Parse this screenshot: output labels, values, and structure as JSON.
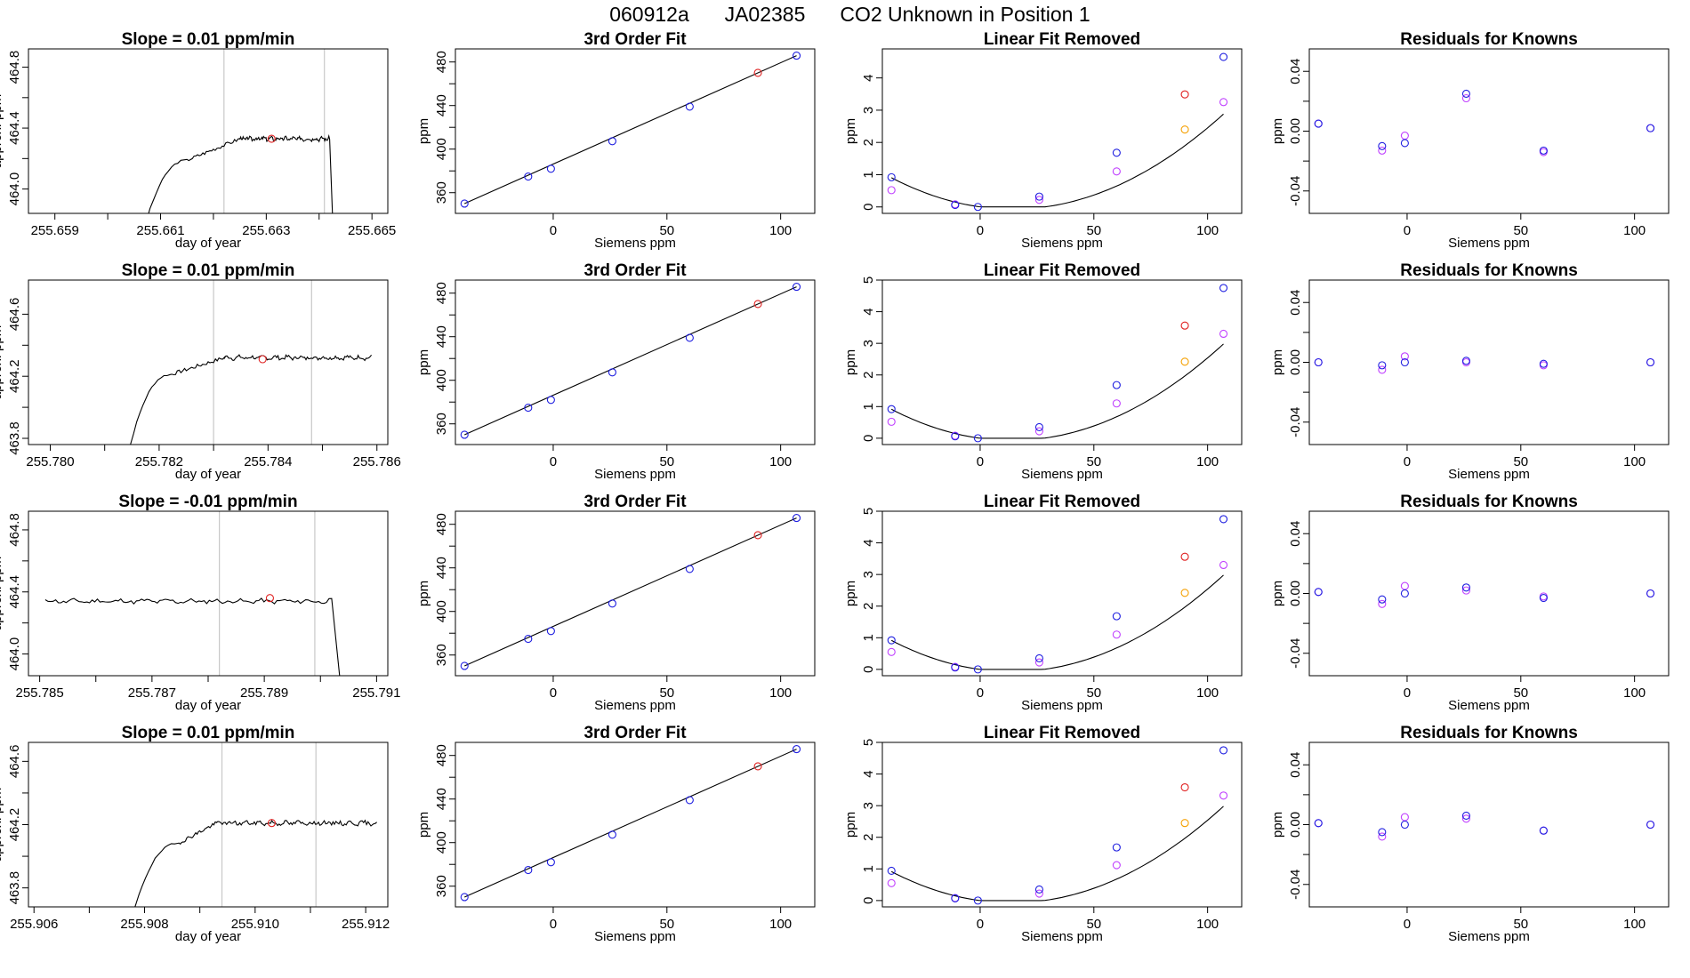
{
  "title": {
    "run": "060912a",
    "tank": "JA02385",
    "description": "CO2 Unknown in Position  1"
  },
  "colors": {
    "blue": "#1f1fe0",
    "red": "#e02020",
    "orange": "#f5a000",
    "magenta": "#c040ff",
    "line": "#000000",
    "vline": "#c8c8c8"
  },
  "chart_data": [
    {
      "type": "line",
      "title": "Slope =  0.01  ppm/min",
      "xlabel": "day of year",
      "ylabel": "approx. ppm",
      "xlim": [
        255.6585,
        255.6653
      ],
      "ylim": [
        463.84,
        464.92
      ],
      "xticks": [
        255.659,
        255.661,
        255.663,
        255.665
      ],
      "xtick_labels": [
        "255.659",
        "255.661",
        "255.663",
        "255.665"
      ],
      "xtick_minor": [
        255.66,
        255.662,
        255.664
      ],
      "yticks": [
        464.0,
        464.4,
        464.8
      ],
      "ytick_labels": [
        "464.0",
        "464.4",
        "464.8"
      ],
      "ytick_minor": [
        464.2,
        464.6
      ],
      "vlines": [
        255.6622,
        255.6641
      ],
      "trace": {
        "start": 255.66045,
        "rise_end": 255.6615,
        "plateau_start": 255.6625,
        "end": 255.6642,
        "drop": 255.6643,
        "base": 463.4,
        "low_mid": 464.19,
        "plateau": 464.33,
        "noise": 0.012,
        "seed": 3
      },
      "marker": {
        "x": 255.6631,
        "y": 464.33
      }
    },
    {
      "type": "scatter",
      "title": "3rd Order Fit",
      "xlabel": "Siemens ppm",
      "ylabel": "ppm",
      "xlim": [
        -43,
        115
      ],
      "ylim": [
        341,
        492
      ],
      "xticks": [
        0,
        50,
        100
      ],
      "xtick_labels": [
        "0",
        "50",
        "100"
      ],
      "yticks": [
        360,
        400,
        440,
        480
      ],
      "ytick_labels": [
        "360",
        "400",
        "440",
        "480"
      ],
      "ytick_minor": [
        380,
        420,
        460
      ],
      "fit_line": {
        "x": [
          -39,
          107
        ],
        "y": [
          350.0,
          485.8
        ]
      },
      "points_blue": {
        "x": [
          -39,
          -11,
          -1,
          26,
          60,
          107
        ],
        "y": [
          350.0,
          374.8,
          382.0,
          407.3,
          439.0,
          485.8
        ]
      },
      "points_red": {
        "x": [
          90
        ],
        "y": [
          470.0
        ]
      }
    },
    {
      "type": "scatter",
      "title": "Linear Fit Removed",
      "xlabel": "Siemens ppm",
      "ylabel": "ppm",
      "xlim": [
        -43,
        115
      ],
      "ylim": [
        -0.2,
        4.9
      ],
      "xticks": [
        0,
        50,
        100
      ],
      "xtick_labels": [
        "0",
        "50",
        "100"
      ],
      "yticks": [
        0,
        1,
        2,
        3,
        4
      ],
      "ytick_labels": [
        "0",
        "1",
        "2",
        "3",
        "4"
      ],
      "curve": {
        "a": 0.000343,
        "b": -0.0098,
        "c": -0.069
      },
      "points_blue": {
        "x": [
          -39,
          -11,
          -1,
          26,
          60,
          107
        ],
        "y": [
          0.92,
          0.06,
          0.0,
          0.32,
          1.68,
          4.65
        ]
      },
      "points_red": {
        "x": [
          90
        ],
        "y": [
          3.49
        ]
      },
      "points_orange": {
        "x": [
          90
        ],
        "y": [
          2.4
        ]
      },
      "points_magenta": {
        "x": [
          -39,
          -11,
          26,
          60,
          107
        ],
        "y": [
          0.52,
          0.08,
          0.22,
          1.1,
          3.25
        ]
      }
    },
    {
      "type": "scatter",
      "title": "Residuals for Knowns",
      "xlabel": "Siemens ppm",
      "ylabel": "ppm",
      "xlim": [
        -43,
        115
      ],
      "ylim": [
        -0.055,
        0.055
      ],
      "xticks": [
        0,
        50,
        100
      ],
      "xtick_labels": [
        "0",
        "50",
        "100"
      ],
      "yticks": [
        -0.04,
        0.0,
        0.04
      ],
      "ytick_labels": [
        "-0.04",
        "0.00",
        "0.04"
      ],
      "ytick_minor": [
        -0.02,
        0.02
      ],
      "points_blue": {
        "x": [
          -39,
          -11,
          -1,
          26,
          60,
          107
        ],
        "y": [
          0.005,
          -0.01,
          -0.008,
          0.025,
          -0.013,
          0.002
        ]
      },
      "points_magenta": {
        "x": [
          -39,
          -11,
          -1,
          26,
          60,
          107
        ],
        "y": [
          0.005,
          -0.013,
          -0.003,
          0.022,
          -0.014,
          0.002
        ]
      }
    },
    {
      "type": "line",
      "title": "Slope =  0.01  ppm/min",
      "xlabel": "day of year",
      "ylabel": "approx. ppm",
      "xlim": [
        255.7796,
        255.7862
      ],
      "ylim": [
        463.76,
        464.82
      ],
      "xticks": [
        255.78,
        255.782,
        255.784,
        255.786
      ],
      "xtick_labels": [
        "255.780",
        "255.782",
        "255.784",
        "255.786"
      ],
      "xtick_minor": [
        255.781,
        255.783,
        255.785
      ],
      "yticks": [
        463.8,
        464.2,
        464.6
      ],
      "ytick_labels": [
        "463.8",
        "464.2",
        "464.6"
      ],
      "ytick_minor": [
        464.0,
        464.4
      ],
      "vlines": [
        255.783,
        255.7848
      ],
      "trace": {
        "start": 255.7812,
        "rise_end": 255.7822,
        "plateau_start": 255.7832,
        "end": 255.7859,
        "drop": null,
        "base": 463.3,
        "low_mid": 464.21,
        "plateau": 464.32,
        "noise": 0.012,
        "seed": 7
      },
      "marker": {
        "x": 255.7839,
        "y": 464.31
      }
    },
    {
      "type": "scatter",
      "title": "3rd Order Fit",
      "xlabel": "Siemens ppm",
      "ylabel": "ppm",
      "xlim": [
        -43,
        115
      ],
      "ylim": [
        341,
        492
      ],
      "xticks": [
        0,
        50,
        100
      ],
      "xtick_labels": [
        "0",
        "50",
        "100"
      ],
      "yticks": [
        360,
        400,
        440,
        480
      ],
      "ytick_labels": [
        "360",
        "400",
        "440",
        "480"
      ],
      "ytick_minor": [
        380,
        420,
        460
      ],
      "fit_line": {
        "x": [
          -39,
          107
        ],
        "y": [
          350.0,
          485.8
        ]
      },
      "points_blue": {
        "x": [
          -39,
          -11,
          -1,
          26,
          60,
          107
        ],
        "y": [
          350.0,
          374.8,
          382.0,
          407.3,
          439.0,
          485.8
        ]
      },
      "points_red": {
        "x": [
          90
        ],
        "y": [
          470.0
        ]
      }
    },
    {
      "type": "scatter",
      "title": "Linear Fit Removed",
      "xlabel": "Siemens ppm",
      "ylabel": "ppm",
      "xlim": [
        -43,
        115
      ],
      "ylim": [
        -0.2,
        5.0
      ],
      "xticks": [
        0,
        50,
        100
      ],
      "xtick_labels": [
        "0",
        "50",
        "100"
      ],
      "yticks": [
        0,
        1,
        2,
        3,
        4,
        5
      ],
      "ytick_labels": [
        "0",
        "1",
        "2",
        "3",
        "4",
        "5"
      ],
      "curve": {
        "a": 0.000352,
        "b": -0.0098,
        "c": -0.072
      },
      "points_blue": {
        "x": [
          -39,
          -11,
          -1,
          26,
          60,
          107
        ],
        "y": [
          0.92,
          0.06,
          0.0,
          0.35,
          1.68,
          4.75
        ]
      },
      "points_red": {
        "x": [
          90
        ],
        "y": [
          3.56
        ]
      },
      "points_orange": {
        "x": [
          90
        ],
        "y": [
          2.42
        ]
      },
      "points_magenta": {
        "x": [
          -39,
          -11,
          26,
          60,
          107
        ],
        "y": [
          0.52,
          0.08,
          0.22,
          1.1,
          3.3
        ]
      }
    },
    {
      "type": "scatter",
      "title": "Residuals for Knowns",
      "xlabel": "Siemens ppm",
      "ylabel": "ppm",
      "xlim": [
        -43,
        115
      ],
      "ylim": [
        -0.055,
        0.055
      ],
      "xticks": [
        0,
        50,
        100
      ],
      "xtick_labels": [
        "0",
        "50",
        "100"
      ],
      "yticks": [
        -0.04,
        0.0,
        0.04
      ],
      "ytick_labels": [
        "-0.04",
        "0.00",
        "0.04"
      ],
      "ytick_minor": [
        -0.02,
        0.02
      ],
      "points_blue": {
        "x": [
          -39,
          -11,
          -1,
          26,
          60,
          107
        ],
        "y": [
          0.0,
          -0.002,
          0.0,
          0.001,
          -0.001,
          0.0
        ]
      },
      "points_magenta": {
        "x": [
          -39,
          -11,
          -1,
          26,
          60,
          107
        ],
        "y": [
          0.0,
          -0.005,
          0.004,
          0.0,
          -0.002,
          0.0
        ]
      }
    },
    {
      "type": "line",
      "title": "Slope =  -0.01  ppm/min",
      "xlabel": "day of year",
      "ylabel": "approx. ppm",
      "xlim": [
        255.7848,
        255.7912
      ],
      "ylim": [
        463.86,
        464.92
      ],
      "xticks": [
        255.785,
        255.787,
        255.789,
        255.791
      ],
      "xtick_labels": [
        "255.785",
        "255.787",
        "255.789",
        "255.791"
      ],
      "xtick_minor": [
        255.786,
        255.788,
        255.79
      ],
      "yticks": [
        464.0,
        464.4,
        464.8
      ],
      "ytick_labels": [
        "464.0",
        "464.4",
        "464.8"
      ],
      "ytick_minor": [
        464.2,
        464.6
      ],
      "vlines": [
        255.7882,
        255.7899
      ],
      "trace": {
        "start": 255.7851,
        "rise_end": null,
        "plateau_start": 255.7851,
        "end": 255.7902,
        "drop": 255.7905,
        "base": 463.3,
        "low_mid": 464.33,
        "plateau": 464.34,
        "noise": 0.012,
        "seed": 11
      },
      "marker": {
        "x": 255.7891,
        "y": 464.36
      }
    },
    {
      "type": "scatter",
      "title": "3rd Order Fit",
      "xlabel": "Siemens ppm",
      "ylabel": "ppm",
      "xlim": [
        -43,
        115
      ],
      "ylim": [
        341,
        492
      ],
      "xticks": [
        0,
        50,
        100
      ],
      "xtick_labels": [
        "0",
        "50",
        "100"
      ],
      "yticks": [
        360,
        400,
        440,
        480
      ],
      "ytick_labels": [
        "360",
        "400",
        "440",
        "480"
      ],
      "ytick_minor": [
        380,
        420,
        460
      ],
      "fit_line": {
        "x": [
          -39,
          107
        ],
        "y": [
          350.0,
          485.8
        ]
      },
      "points_blue": {
        "x": [
          -39,
          -11,
          -1,
          26,
          60,
          107
        ],
        "y": [
          350.0,
          374.8,
          382.0,
          407.3,
          439.0,
          485.8
        ]
      },
      "points_red": {
        "x": [
          90
        ],
        "y": [
          470.0
        ]
      }
    },
    {
      "type": "scatter",
      "title": "Linear Fit Removed",
      "xlabel": "Siemens ppm",
      "ylabel": "ppm",
      "xlim": [
        -43,
        115
      ],
      "ylim": [
        -0.2,
        5.0
      ],
      "xticks": [
        0,
        50,
        100
      ],
      "xtick_labels": [
        "0",
        "50",
        "100"
      ],
      "yticks": [
        0,
        1,
        2,
        3,
        4,
        5
      ],
      "ytick_labels": [
        "0",
        "1",
        "2",
        "3",
        "4",
        "5"
      ],
      "curve": {
        "a": 0.000352,
        "b": -0.0098,
        "c": -0.072
      },
      "points_blue": {
        "x": [
          -39,
          -11,
          -1,
          26,
          60,
          107
        ],
        "y": [
          0.92,
          0.06,
          0.0,
          0.35,
          1.68,
          4.75
        ]
      },
      "points_red": {
        "x": [
          90
        ],
        "y": [
          3.56
        ]
      },
      "points_orange": {
        "x": [
          90
        ],
        "y": [
          2.42
        ]
      },
      "points_magenta": {
        "x": [
          -39,
          -11,
          26,
          60,
          107
        ],
        "y": [
          0.55,
          0.08,
          0.22,
          1.1,
          3.3
        ]
      }
    },
    {
      "type": "scatter",
      "title": "Residuals for Knowns",
      "xlabel": "Siemens ppm",
      "ylabel": "ppm",
      "xlim": [
        -43,
        115
      ],
      "ylim": [
        -0.055,
        0.055
      ],
      "xticks": [
        0,
        50,
        100
      ],
      "xtick_labels": [
        "0",
        "50",
        "100"
      ],
      "yticks": [
        -0.04,
        0.0,
        0.04
      ],
      "ytick_labels": [
        "-0.04",
        "0.00",
        "0.04"
      ],
      "ytick_minor": [
        -0.02,
        0.02
      ],
      "points_blue": {
        "x": [
          -39,
          -11,
          -1,
          26,
          60,
          107
        ],
        "y": [
          0.001,
          -0.004,
          0.0,
          0.004,
          -0.003,
          0.0
        ]
      },
      "points_magenta": {
        "x": [
          -39,
          -11,
          -1,
          26,
          60,
          107
        ],
        "y": [
          0.001,
          -0.007,
          0.005,
          0.002,
          -0.002,
          0.0
        ]
      }
    },
    {
      "type": "line",
      "title": "Slope =  0.01  ppm/min",
      "xlabel": "day of year",
      "ylabel": "approx. ppm",
      "xlim": [
        255.9059,
        255.9124
      ],
      "ylim": [
        463.68,
        464.72
      ],
      "xticks": [
        255.906,
        255.908,
        255.91,
        255.912
      ],
      "xtick_labels": [
        "255.906",
        "255.908",
        "255.910",
        "255.912"
      ],
      "xtick_minor": [
        255.907,
        255.909,
        255.911
      ],
      "yticks": [
        463.8,
        464.2,
        464.6
      ],
      "ytick_labels": [
        "463.8",
        "464.2",
        "464.6"
      ],
      "ytick_minor": [
        464.0,
        464.4
      ],
      "vlines": [
        255.9094,
        255.9111
      ],
      "trace": {
        "start": 255.90755,
        "rise_end": 255.9086,
        "plateau_start": 255.9093,
        "end": 255.9122,
        "drop": null,
        "base": 463.3,
        "low_mid": 464.08,
        "plateau": 464.21,
        "noise": 0.012,
        "seed": 19
      },
      "marker": {
        "x": 255.9103,
        "y": 464.21
      }
    },
    {
      "type": "scatter",
      "title": "3rd Order Fit",
      "xlabel": "Siemens ppm",
      "ylabel": "ppm",
      "xlim": [
        -43,
        115
      ],
      "ylim": [
        341,
        492
      ],
      "xticks": [
        0,
        50,
        100
      ],
      "xtick_labels": [
        "0",
        "50",
        "100"
      ],
      "yticks": [
        360,
        400,
        440,
        480
      ],
      "ytick_labels": [
        "360",
        "400",
        "440",
        "480"
      ],
      "ytick_minor": [
        380,
        420,
        460
      ],
      "fit_line": {
        "x": [
          -39,
          107
        ],
        "y": [
          350.0,
          485.8
        ]
      },
      "points_blue": {
        "x": [
          -39,
          -11,
          -1,
          26,
          60,
          107
        ],
        "y": [
          350.0,
          374.8,
          382.0,
          407.3,
          439.0,
          485.8
        ]
      },
      "points_red": {
        "x": [
          90
        ],
        "y": [
          470.0
        ]
      }
    },
    {
      "type": "scatter",
      "title": "Linear Fit Removed",
      "xlabel": "Siemens ppm",
      "ylabel": "ppm",
      "xlim": [
        -43,
        115
      ],
      "ylim": [
        -0.2,
        5.0
      ],
      "xticks": [
        0,
        50,
        100
      ],
      "xtick_labels": [
        "0",
        "50",
        "100"
      ],
      "yticks": [
        0,
        1,
        2,
        3,
        4,
        5
      ],
      "ytick_labels": [
        "0",
        "1",
        "2",
        "3",
        "4",
        "5"
      ],
      "curve": {
        "a": 0.000352,
        "b": -0.0098,
        "c": -0.072
      },
      "points_blue": {
        "x": [
          -39,
          -11,
          -1,
          26,
          60,
          107
        ],
        "y": [
          0.94,
          0.07,
          0.0,
          0.35,
          1.68,
          4.75
        ]
      },
      "points_red": {
        "x": [
          90
        ],
        "y": [
          3.58
        ]
      },
      "points_orange": {
        "x": [
          90
        ],
        "y": [
          2.45
        ]
      },
      "points_magenta": {
        "x": [
          -39,
          -11,
          26,
          60,
          107
        ],
        "y": [
          0.55,
          0.08,
          0.22,
          1.12,
          3.32
        ]
      }
    },
    {
      "type": "scatter",
      "title": "Residuals for Knowns",
      "xlabel": "Siemens ppm",
      "ylabel": "ppm",
      "xlim": [
        -43,
        115
      ],
      "ylim": [
        -0.055,
        0.055
      ],
      "xticks": [
        0,
        50,
        100
      ],
      "xtick_labels": [
        "0",
        "50",
        "100"
      ],
      "yticks": [
        -0.04,
        0.0,
        0.04
      ],
      "ytick_labels": [
        "-0.04",
        "0.00",
        "0.04"
      ],
      "ytick_minor": [
        -0.02,
        0.02
      ],
      "points_blue": {
        "x": [
          -39,
          -11,
          -1,
          26,
          60,
          107
        ],
        "y": [
          0.001,
          -0.005,
          0.0,
          0.006,
          -0.004,
          0.0
        ]
      },
      "points_magenta": {
        "x": [
          -39,
          -11,
          -1,
          26,
          60,
          107
        ],
        "y": [
          0.001,
          -0.008,
          0.005,
          0.004,
          -0.004,
          0.0
        ]
      }
    }
  ]
}
